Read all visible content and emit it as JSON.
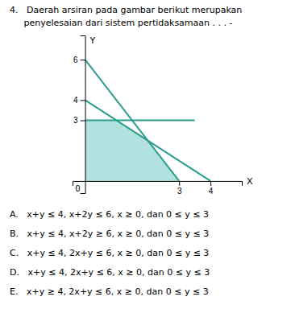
{
  "chart_data": {
    "type": "line",
    "title": "4.   Daerah arsiran pada gambar berikut merupakan",
    "subtitle": "     penyelesaian dari sistem pertidaksamaan . . . -",
    "xlabel": "X",
    "ylabel": "Y",
    "xlim": [
      -0.4,
      5.0
    ],
    "ylim": [
      -0.6,
      7.2
    ],
    "xticks": [
      3,
      4
    ],
    "yticks": [
      3,
      4,
      6
    ],
    "grid": false,
    "series": [
      {
        "type": "area",
        "color": "#7ececa",
        "x": [
          0,
          3,
          2,
          1,
          0
        ],
        "values": [
          0,
          0,
          2,
          3,
          3
        ]
      },
      {
        "type": "line",
        "color": "#2a9d8f",
        "x": [
          0,
          3
        ],
        "values": [
          6,
          0
        ]
      },
      {
        "type": "line",
        "color": "#2a9d8f",
        "x": [
          0,
          4
        ],
        "values": [
          4,
          0
        ]
      },
      {
        "type": "line",
        "color": "#2a9d8f",
        "x": [
          0,
          3.5
        ],
        "values": [
          3,
          3
        ]
      }
    ],
    "annotations": [
      {
        "text": "0",
        "x": 0,
        "y": 0
      }
    ],
    "options": [
      "A.   x+y ≤ 4, x+2y ≤ 6, x ≥ 0, dan 0 ≤ y ≤ 3",
      "B.   x+y ≤ 4, x+2y ≥ 6, x ≥ 0, dan 0 ≤ y ≤ 3",
      "C.   x+y ≤ 4, 2x+y ≤ 6, x ≥ 0, dan 0 ≤ y ≤ 3",
      "D.   x+y ≤ 4, 2x+y ≤ 6, x ≥ 0, dan 0 ≤ y ≤ 3",
      "E.   x+y ≥ 4, 2x+y ≤ 6, x ≥ 0, dan 0 ≤ y ≤ 3"
    ]
  }
}
